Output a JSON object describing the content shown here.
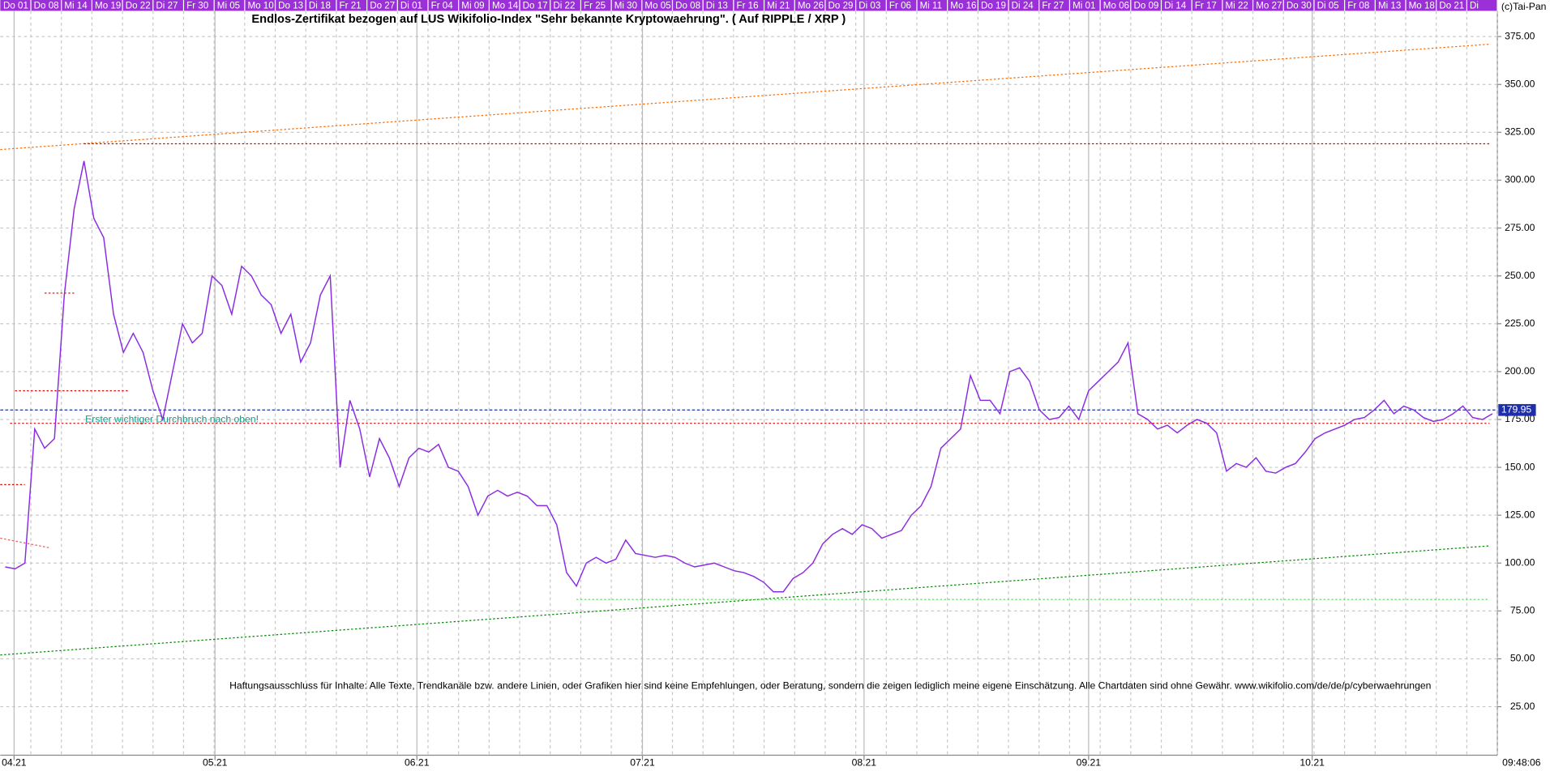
{
  "chart_data": {
    "type": "line",
    "title": "Endlos-Zertifikat bezogen auf LUS Wikifolio-Index \"Sehr bekannte Kryptowaehrung\". ( Auf RIPPLE / XRP )",
    "copyright": "(c)Tai-Pan",
    "time": "09:48:06",
    "disclaimer": "Haftungsausschluss für Inhalte: Alle Texte, Trendkanäle bzw. andere Linien, oder Grafiken hier sind keine Empfehlungen, oder Beratung, sondern die zeigen lediglich meine eigene Einschätzung. Alle Chartdaten sind ohne Gewähr.  www.wikifolio.com/de/de/p/cyberwaehrungen",
    "annotation": "Erster wichtiger Durchbruch nach oben!",
    "day_labels": [
      "Do 01",
      "Do 08",
      "Mi 14",
      "Mo 19",
      "Do 22",
      "Di 27",
      "Fr 30",
      "Mi 05",
      "Mo 10",
      "Do 13",
      "Di 18",
      "Fr 21",
      "Do 27",
      "Di 01",
      "Fr 04",
      "Mi 09",
      "Mo 14",
      "Do 17",
      "Di 22",
      "Fr 25",
      "Mi 30",
      "Mo 05",
      "Do 08",
      "Di 13",
      "Fr 16",
      "Mi 21",
      "Mo 26",
      "Do 29",
      "Di 03",
      "Fr 06",
      "Mi 11",
      "Mo 16",
      "Do 19",
      "Di 24",
      "Fr 27",
      "Mi 01",
      "Mo 06",
      "Do 09",
      "Di 14",
      "Fr 17",
      "Mi 22",
      "Mo 27",
      "Do 30",
      "Di 05",
      "Fr 08",
      "Mi 13",
      "Mo 18",
      "Do 21",
      "Di"
    ],
    "series": [
      {
        "color": "#8a2be2",
        "values": [
          98,
          97,
          100,
          170,
          160,
          165,
          240,
          285,
          310,
          280,
          270,
          230,
          210,
          220,
          210,
          190,
          175,
          200,
          225,
          215,
          220,
          250,
          245,
          230,
          255,
          250,
          240,
          235,
          220,
          230,
          205,
          215,
          240,
          250,
          150,
          185,
          170,
          145,
          165,
          155,
          140,
          155,
          160,
          158,
          162,
          150,
          148,
          140,
          125,
          135,
          138,
          135,
          137,
          135,
          130,
          130,
          120,
          95,
          88,
          100,
          103,
          100,
          102,
          112,
          105,
          104,
          103,
          104,
          103,
          100,
          98,
          99,
          100,
          98,
          96,
          95,
          93,
          90,
          85,
          85,
          92,
          95,
          100,
          110,
          115,
          118,
          115,
          120,
          118,
          113,
          115,
          117,
          125,
          130,
          140,
          160,
          165,
          170,
          198,
          185,
          185,
          178,
          200,
          202,
          195,
          180,
          175,
          176,
          182,
          175,
          190,
          195,
          200,
          205,
          215,
          178,
          175,
          170,
          172,
          168,
          172,
          175,
          173,
          168,
          148,
          152,
          150,
          155,
          148,
          147,
          150,
          152,
          158,
          165,
          168,
          170,
          172,
          175,
          176,
          180,
          185,
          178,
          182,
          180,
          176,
          174,
          175,
          178,
          182,
          176,
          175,
          178
        ]
      }
    ],
    "last_value": 179.95,
    "xlim": [
      -0.5,
      151.5
    ],
    "xticks": [
      {
        "value": 0.9,
        "label": "04.21"
      },
      {
        "value": 21.3,
        "label": "05.21"
      },
      {
        "value": 41.8,
        "label": "06.21"
      },
      {
        "value": 64.7,
        "label": "07.21"
      },
      {
        "value": 87.2,
        "label": "08.21"
      },
      {
        "value": 110,
        "label": "09.21"
      },
      {
        "value": 132.7,
        "label": "10.21"
      }
    ],
    "ylim": [
      -8.6,
      394.1
    ],
    "yticks": [
      {
        "value": 25,
        "label": "25.00"
      },
      {
        "value": 50,
        "label": "50.00"
      },
      {
        "value": 75,
        "label": "75.00"
      },
      {
        "value": 100,
        "label": "100.00"
      },
      {
        "value": 125,
        "label": "125.00"
      },
      {
        "value": 150,
        "label": "150.00"
      },
      {
        "value": 175,
        "label": "175.00"
      },
      {
        "value": 200,
        "label": "200.00"
      },
      {
        "value": 225,
        "label": "225.00"
      },
      {
        "value": 250,
        "label": "250.00"
      },
      {
        "value": 275,
        "label": "275.00"
      },
      {
        "value": 300,
        "label": "300.00"
      },
      {
        "value": 325,
        "label": "325.00"
      },
      {
        "value": 350,
        "label": "350.00"
      },
      {
        "value": 375,
        "label": "375.00"
      }
    ],
    "grid": true,
    "lines": [
      {
        "color": "#ff6a00",
        "x": [
          -0.5,
          150.7
        ],
        "y": [
          316,
          371
        ]
      },
      {
        "color": "#008800",
        "x": [
          -0.5,
          150.7
        ],
        "y": [
          52,
          109
        ]
      },
      {
        "color": "#dd0000",
        "x": [
          8,
          150.7
        ],
        "y": [
          319,
          319
        ]
      },
      {
        "color": "#dd0000",
        "x": [
          0.5,
          150.7
        ],
        "y": [
          173,
          173
        ]
      },
      {
        "color": "#55dd55",
        "x": [
          58,
          150.7
        ],
        "y": [
          81,
          81
        ]
      },
      {
        "color": "#dd0000",
        "x": [
          4,
          7
        ],
        "y": [
          241,
          241
        ]
      },
      {
        "color": "#dd0000",
        "x": [
          1,
          12.5
        ],
        "y": [
          190,
          190
        ]
      },
      {
        "color": "#dd0000",
        "x": [
          -0.5,
          2
        ],
        "y": [
          141,
          141
        ]
      },
      {
        "color": "#ee5555",
        "x": [
          -0.5,
          4.5
        ],
        "y": [
          113,
          108
        ]
      }
    ]
  }
}
